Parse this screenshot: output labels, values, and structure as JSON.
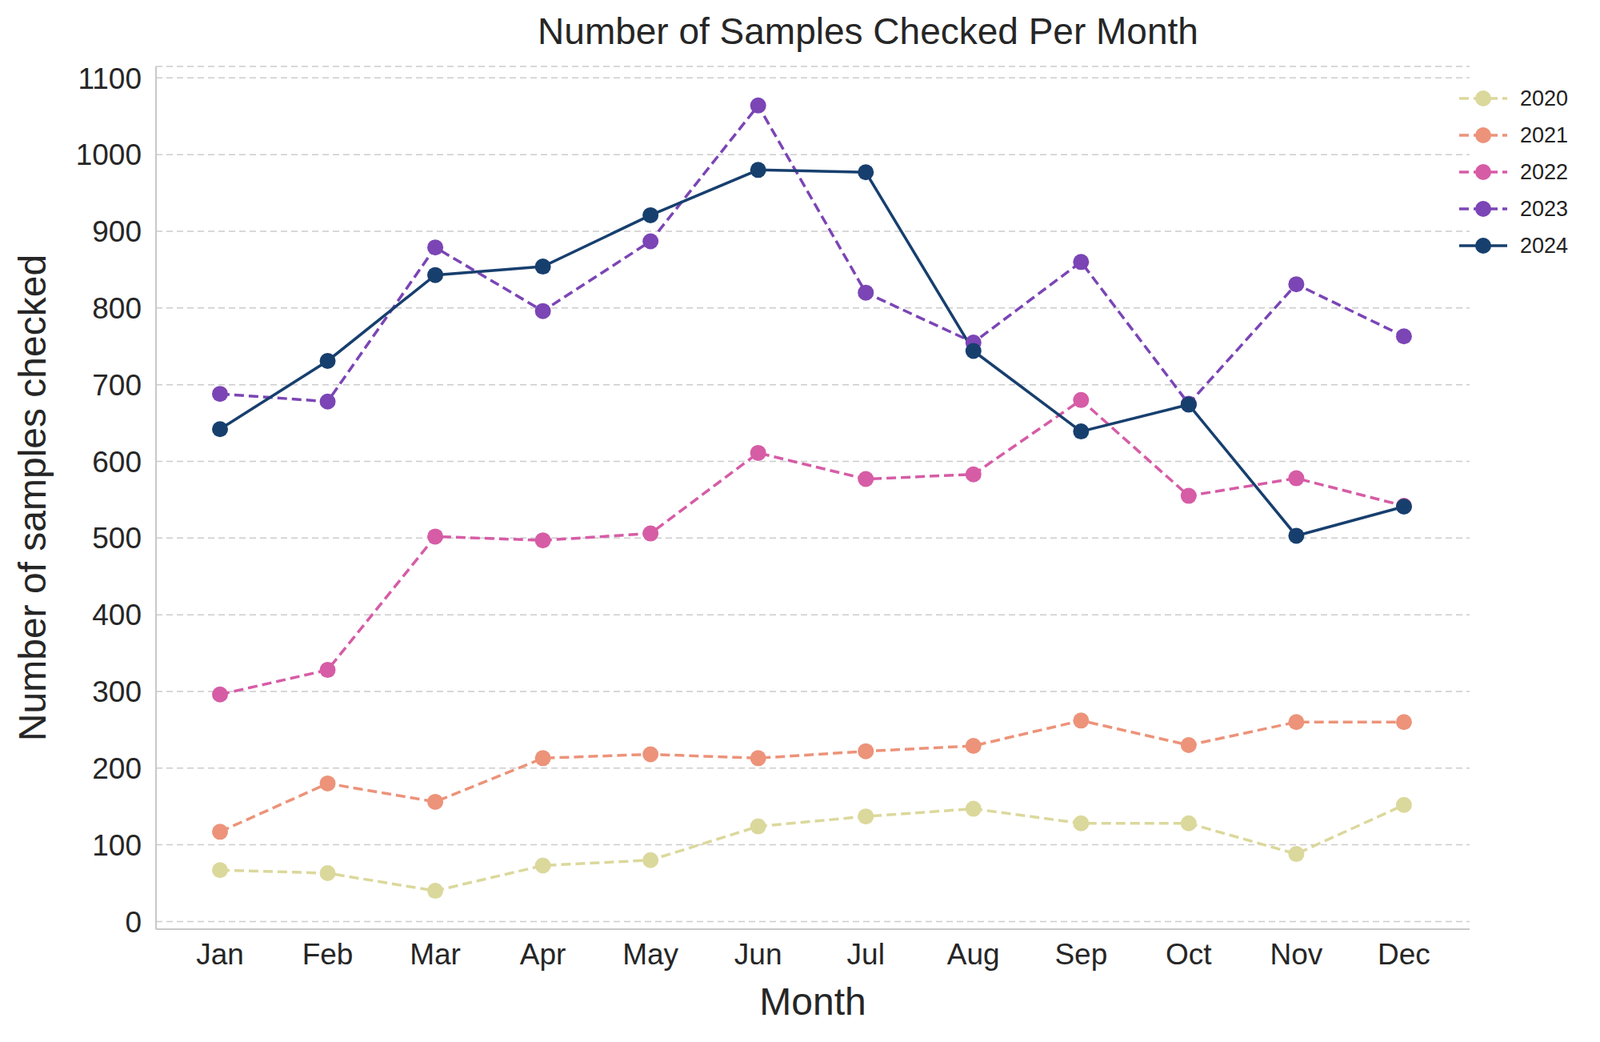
{
  "chart_data": {
    "type": "line",
    "title": "Number of Samples Checked Per Month",
    "x_label": "Month",
    "y_label": "Number of samples checked",
    "categories": [
      "Jan",
      "Feb",
      "Mar",
      "Apr",
      "May",
      "Jun",
      "Jul",
      "Aug",
      "Sep",
      "Oct",
      "Nov",
      "Dec"
    ],
    "series": [
      {
        "name": "2020",
        "color": "#dbd89c",
        "marker": "o",
        "line_style": "dashed",
        "values": [
          67,
          63,
          40,
          73,
          80,
          124,
          137,
          147,
          128,
          128,
          88,
          152
        ]
      },
      {
        "name": "2021",
        "color": "#ec937a",
        "marker": "o",
        "line_style": "dashed",
        "values": [
          117,
          180,
          156,
          213,
          218,
          213,
          222,
          229,
          262,
          230,
          260,
          260
        ]
      },
      {
        "name": "2022",
        "color": "#d65ca6",
        "marker": "o",
        "line_style": "dashed",
        "values": [
          296,
          328,
          502,
          497,
          506,
          611,
          577,
          583,
          680,
          555,
          578,
          542
        ]
      },
      {
        "name": "2023",
        "color": "#7b45b5",
        "marker": "o",
        "line_style": "dashed",
        "values": [
          688,
          678,
          879,
          796,
          887,
          1064,
          820,
          755,
          860,
          675,
          831,
          763
        ]
      },
      {
        "name": "2024",
        "color": "#173f6e",
        "marker": "o",
        "line_style": "solid",
        "values": [
          642,
          731,
          843,
          854,
          921,
          980,
          977,
          744,
          639,
          674,
          503,
          541
        ]
      }
    ],
    "ylim": [
      -10,
      1115
    ],
    "yticks": [
      0,
      100,
      200,
      300,
      400,
      500,
      600,
      700,
      800,
      900,
      1000,
      1100
    ],
    "grid": true,
    "legend": "upper right"
  }
}
